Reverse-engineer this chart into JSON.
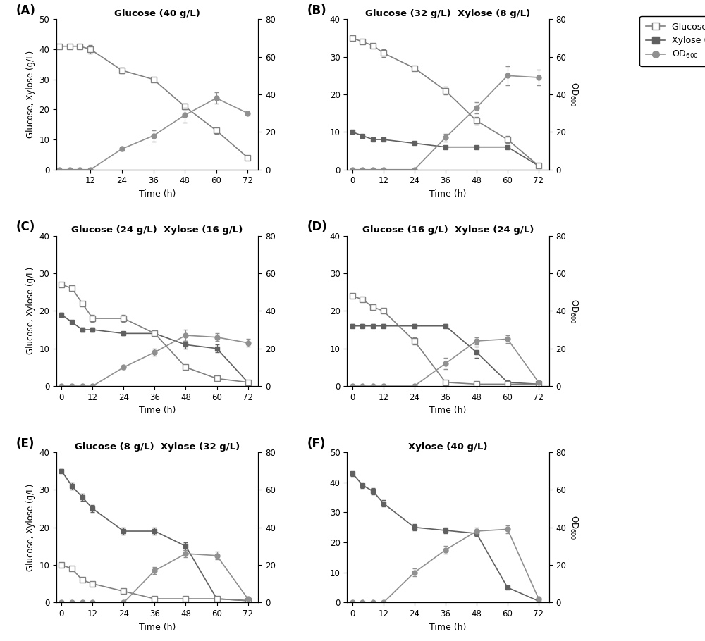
{
  "panels": [
    {
      "label": "A",
      "title": "Glucose (40 g/L)",
      "has_glucose": true,
      "has_xylose": false,
      "left_ylim": [
        0,
        50
      ],
      "left_yticks": [
        0,
        10,
        20,
        30,
        40,
        50
      ],
      "right_ylim": [
        0,
        80
      ],
      "right_yticks": [
        0,
        20,
        40,
        60,
        80
      ],
      "time": [
        0,
        4,
        8,
        12,
        24,
        36,
        48,
        60,
        72
      ],
      "glucose": [
        41,
        41,
        41,
        40,
        33,
        30,
        21,
        13,
        4
      ],
      "glucose_err": [
        0.5,
        0.5,
        0.5,
        1.5,
        1,
        0.5,
        1,
        1,
        0.5
      ],
      "xylose": null,
      "xylose_err": null,
      "od": [
        0,
        0,
        0,
        0,
        11,
        18,
        29,
        38,
        30
      ],
      "od_err": [
        0,
        0,
        0,
        0,
        1,
        3,
        4,
        3,
        1
      ],
      "xticks": [
        12,
        24,
        36,
        48,
        60,
        72
      ],
      "xlim": [
        -1,
        76
      ]
    },
    {
      "label": "B",
      "title": "Glucose (32 g/L)  Xylose (8 g/L)",
      "has_glucose": true,
      "has_xylose": true,
      "left_ylim": [
        0,
        40
      ],
      "left_yticks": [
        0,
        10,
        20,
        30,
        40
      ],
      "right_ylim": [
        0,
        80
      ],
      "right_yticks": [
        0,
        20,
        40,
        60,
        80
      ],
      "time": [
        0,
        4,
        8,
        12,
        24,
        36,
        48,
        60,
        72
      ],
      "glucose": [
        35,
        34,
        33,
        31,
        27,
        21,
        13,
        8,
        1
      ],
      "glucose_err": [
        0.5,
        0.5,
        0.5,
        1,
        0.5,
        1,
        1,
        1,
        0.3
      ],
      "xylose": [
        10,
        9,
        8,
        8,
        7,
        6,
        6,
        6,
        1
      ],
      "xylose_err": [
        0.5,
        0.4,
        0.4,
        0.4,
        0.3,
        0.3,
        0.3,
        0.3,
        0.2
      ],
      "od": [
        0,
        0,
        0,
        0,
        0,
        17,
        33,
        50,
        49
      ],
      "od_err": [
        0,
        0,
        0,
        0,
        0,
        2,
        3,
        5,
        4
      ],
      "xticks": [
        0,
        12,
        24,
        36,
        48,
        60,
        72
      ],
      "xlim": [
        -2,
        76
      ]
    },
    {
      "label": "C",
      "title": "Glucose (24 g/L)  Xylose (16 g/L)",
      "has_glucose": true,
      "has_xylose": true,
      "left_ylim": [
        0,
        40
      ],
      "left_yticks": [
        0,
        10,
        20,
        30,
        40
      ],
      "right_ylim": [
        0,
        80
      ],
      "right_yticks": [
        0,
        20,
        40,
        60,
        80
      ],
      "time": [
        0,
        4,
        8,
        12,
        24,
        36,
        48,
        60,
        72
      ],
      "glucose": [
        27,
        26,
        22,
        18,
        18,
        14,
        5,
        2,
        1
      ],
      "glucose_err": [
        0.5,
        0.5,
        0.5,
        1,
        1,
        0.5,
        0.5,
        0.3,
        0.2
      ],
      "xylose": [
        19,
        17,
        15,
        15,
        14,
        14,
        11,
        10,
        1
      ],
      "xylose_err": [
        0.5,
        0.5,
        0.5,
        0.5,
        0.5,
        0.5,
        1,
        1,
        0.2
      ],
      "od": [
        0,
        0,
        0,
        0,
        10,
        18,
        27,
        26,
        23
      ],
      "od_err": [
        0,
        0,
        0,
        0,
        1,
        2,
        3,
        2,
        2
      ],
      "xticks": [
        0,
        12,
        24,
        36,
        48,
        60,
        72
      ],
      "xlim": [
        -2,
        76
      ]
    },
    {
      "label": "D",
      "title": "Glucose (16 g/L)  Xylose (24 g/L)",
      "has_glucose": true,
      "has_xylose": true,
      "left_ylim": [
        0,
        40
      ],
      "left_yticks": [
        0,
        10,
        20,
        30,
        40
      ],
      "right_ylim": [
        0,
        80
      ],
      "right_yticks": [
        0,
        20,
        40,
        60,
        80
      ],
      "time": [
        0,
        4,
        8,
        12,
        24,
        36,
        48,
        60,
        72
      ],
      "glucose": [
        24,
        23,
        21,
        20,
        12,
        1,
        0.5,
        0.5,
        0.5
      ],
      "glucose_err": [
        0.5,
        0.5,
        0.5,
        0.5,
        1,
        0.3,
        0.2,
        0.2,
        0.2
      ],
      "xylose": [
        16,
        16,
        16,
        16,
        16,
        16,
        9,
        1,
        0.5
      ],
      "xylose_err": [
        0.5,
        0.5,
        0.5,
        0.5,
        0.5,
        0.5,
        1.5,
        0.3,
        0.2
      ],
      "od": [
        0,
        0,
        0,
        0,
        0,
        12,
        24,
        25,
        2
      ],
      "od_err": [
        0,
        0,
        0,
        0,
        0,
        3,
        2,
        2,
        0.5
      ],
      "xticks": [
        0,
        12,
        24,
        36,
        48,
        60,
        72
      ],
      "xlim": [
        -2,
        76
      ]
    },
    {
      "label": "E",
      "title": "Glucose (8 g/L)  Xylose (32 g/L)",
      "has_glucose": true,
      "has_xylose": true,
      "left_ylim": [
        0,
        40
      ],
      "left_yticks": [
        0,
        10,
        20,
        30,
        40
      ],
      "right_ylim": [
        0,
        80
      ],
      "right_yticks": [
        0,
        20,
        40,
        60,
        80
      ],
      "time": [
        0,
        4,
        8,
        12,
        24,
        36,
        48,
        60,
        72
      ],
      "glucose": [
        10,
        9,
        6,
        5,
        3,
        1,
        1,
        1,
        0.5
      ],
      "glucose_err": [
        0.5,
        0.5,
        0.5,
        0.5,
        0.3,
        0.2,
        0.2,
        0.2,
        0.1
      ],
      "xylose": [
        35,
        31,
        28,
        25,
        19,
        19,
        15,
        1,
        0.5
      ],
      "xylose_err": [
        0.5,
        1,
        1,
        1,
        1,
        1,
        1,
        0.3,
        0.2
      ],
      "od": [
        0,
        0,
        0,
        0,
        0,
        17,
        26,
        25,
        2
      ],
      "od_err": [
        0,
        0,
        0,
        0,
        0,
        2,
        2,
        2,
        0.5
      ],
      "xticks": [
        0,
        12,
        24,
        36,
        48,
        60,
        72
      ],
      "xlim": [
        -2,
        76
      ]
    },
    {
      "label": "F",
      "title": "Xylose (40 g/L)",
      "has_glucose": false,
      "has_xylose": true,
      "left_ylim": [
        0,
        50
      ],
      "left_yticks": [
        0,
        10,
        20,
        30,
        40,
        50
      ],
      "right_ylim": [
        0,
        80
      ],
      "right_yticks": [
        0,
        20,
        40,
        60,
        80
      ],
      "time": [
        0,
        4,
        8,
        12,
        24,
        36,
        48,
        60,
        72
      ],
      "glucose": null,
      "glucose_err": null,
      "xylose": [
        43,
        39,
        37,
        33,
        25,
        24,
        23,
        5,
        0.5
      ],
      "xylose_err": [
        1,
        1,
        1,
        1,
        1,
        1,
        1,
        0.5,
        0.2
      ],
      "od": [
        0,
        0,
        0,
        0,
        16,
        28,
        38,
        39,
        2
      ],
      "od_err": [
        0,
        0,
        0,
        0,
        2,
        2,
        2,
        2,
        0.5
      ],
      "xticks": [
        0,
        12,
        24,
        36,
        48,
        60,
        72
      ],
      "xlim": [
        -2,
        76
      ]
    }
  ],
  "colors": {
    "glucose": "#808080",
    "xylose": "#606060",
    "od": "#909090"
  },
  "legend": {
    "glucose_label": "Glucose (g/L)",
    "xylose_label": "Xylose (g/L)",
    "od_label": "OD$_{600}$"
  },
  "xlabel": "Time (h)",
  "ylabel_left": "Glucose, Xylose (g/L)",
  "ylabel_right": "OD$_{600}$"
}
